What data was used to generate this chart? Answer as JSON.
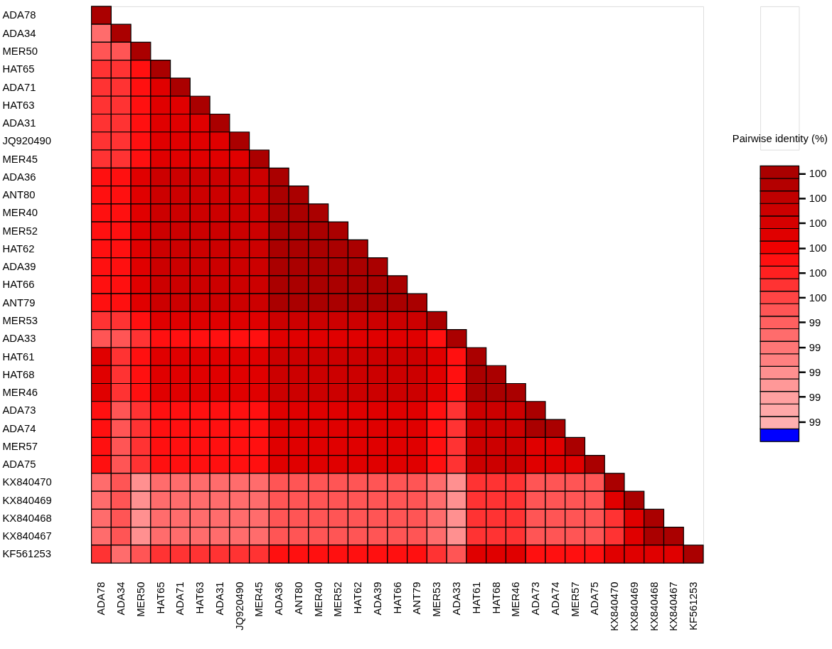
{
  "chart_data": {
    "type": "heatmap",
    "clabel": "Pairwise identity (%)",
    "categories": [
      "ADA78",
      "ADA34",
      "MER50",
      "HAT65",
      "ADA71",
      "HAT63",
      "ADA31",
      "JQ920490",
      "MER45",
      "ADA36",
      "ANT80",
      "MER40",
      "MER52",
      "HAT62",
      "ADA39",
      "HAT66",
      "ANT79",
      "MER53",
      "ADA33",
      "HAT61",
      "HAT68",
      "MER46",
      "ADA73",
      "ADA74",
      "MER57",
      "ADA75",
      "KX840470",
      "KX840469",
      "KX840468",
      "KX840467",
      "KF561253"
    ],
    "y_categories": [
      "ADA78",
      "ADA34",
      "MER50",
      "HAT65",
      "ADA71",
      "HAT63",
      "ADA31",
      "JQ920490",
      "MER45",
      "ADA36",
      "ANT80",
      "MER40",
      "MER52",
      "HAT62",
      "ADA39",
      "HAT66",
      "ANT79",
      "MER53",
      "ADA33",
      "HAT61",
      "HAT68",
      "MER46",
      "ADA73",
      "ADA74",
      "MER57",
      "ADA75",
      "KX840470",
      "KX840469",
      "KX840468",
      "KX840467",
      "KF561253"
    ],
    "cells": [
      [
        100,
        null,
        null,
        null,
        null,
        null,
        null,
        null,
        null,
        null,
        null,
        null,
        null,
        null,
        null,
        null,
        null,
        null,
        null,
        null,
        null,
        null,
        null,
        null,
        null,
        null,
        null,
        null,
        null,
        null,
        null
      ],
      [
        99.34,
        100,
        null,
        null,
        null,
        null,
        null,
        null,
        null,
        null,
        null,
        null,
        null,
        null,
        null,
        null,
        null,
        null,
        null,
        null,
        null,
        null,
        null,
        null,
        null,
        null,
        null,
        null,
        null,
        null,
        null
      ],
      [
        99.44,
        99.44,
        100,
        null,
        null,
        null,
        null,
        null,
        null,
        null,
        null,
        null,
        null,
        null,
        null,
        null,
        null,
        null,
        null,
        null,
        null,
        null,
        null,
        null,
        null,
        null,
        null,
        null,
        null,
        null,
        null
      ],
      [
        99.54,
        99.54,
        99.64,
        100,
        null,
        null,
        null,
        null,
        null,
        null,
        null,
        null,
        null,
        null,
        null,
        null,
        null,
        null,
        null,
        null,
        null,
        null,
        null,
        null,
        null,
        null,
        null,
        null,
        null,
        null,
        null
      ],
      [
        99.54,
        99.54,
        99.64,
        99.74,
        100,
        null,
        null,
        null,
        null,
        null,
        null,
        null,
        null,
        null,
        null,
        null,
        null,
        null,
        null,
        null,
        null,
        null,
        null,
        null,
        null,
        null,
        null,
        null,
        null,
        null,
        null
      ],
      [
        99.54,
        99.54,
        99.64,
        99.74,
        99.74,
        100,
        null,
        null,
        null,
        null,
        null,
        null,
        null,
        null,
        null,
        null,
        null,
        null,
        null,
        null,
        null,
        null,
        null,
        null,
        null,
        null,
        null,
        null,
        null,
        null,
        null
      ],
      [
        99.54,
        99.54,
        99.64,
        99.74,
        99.74,
        99.74,
        100,
        null,
        null,
        null,
        null,
        null,
        null,
        null,
        null,
        null,
        null,
        null,
        null,
        null,
        null,
        null,
        null,
        null,
        null,
        null,
        null,
        null,
        null,
        null,
        null
      ],
      [
        99.54,
        99.54,
        99.64,
        99.74,
        99.74,
        99.74,
        99.74,
        100,
        null,
        null,
        null,
        null,
        null,
        null,
        null,
        null,
        null,
        null,
        null,
        null,
        null,
        null,
        null,
        null,
        null,
        null,
        null,
        null,
        null,
        null,
        null
      ],
      [
        99.54,
        99.54,
        99.64,
        99.74,
        99.74,
        99.74,
        99.74,
        99.74,
        100,
        null,
        null,
        null,
        null,
        null,
        null,
        null,
        null,
        null,
        null,
        null,
        null,
        null,
        null,
        null,
        null,
        null,
        null,
        null,
        null,
        null,
        null
      ],
      [
        99.64,
        99.64,
        99.74,
        99.84,
        99.84,
        99.84,
        99.84,
        99.84,
        99.84,
        100,
        null,
        null,
        null,
        null,
        null,
        null,
        null,
        null,
        null,
        null,
        null,
        null,
        null,
        null,
        null,
        null,
        null,
        null,
        null,
        null,
        null
      ],
      [
        99.64,
        99.64,
        99.74,
        99.84,
        99.84,
        99.84,
        99.84,
        99.84,
        99.84,
        100,
        100,
        null,
        null,
        null,
        null,
        null,
        null,
        null,
        null,
        null,
        null,
        null,
        null,
        null,
        null,
        null,
        null,
        null,
        null,
        null,
        null
      ],
      [
        99.64,
        99.64,
        99.74,
        99.84,
        99.84,
        99.84,
        99.84,
        99.84,
        99.84,
        100,
        100,
        100,
        null,
        null,
        null,
        null,
        null,
        null,
        null,
        null,
        null,
        null,
        null,
        null,
        null,
        null,
        null,
        null,
        null,
        null,
        null
      ],
      [
        99.64,
        99.64,
        99.74,
        99.84,
        99.84,
        99.84,
        99.84,
        99.84,
        99.84,
        100,
        100,
        100,
        100,
        null,
        null,
        null,
        null,
        null,
        null,
        null,
        null,
        null,
        null,
        null,
        null,
        null,
        null,
        null,
        null,
        null,
        null
      ],
      [
        99.64,
        99.64,
        99.74,
        99.84,
        99.84,
        99.84,
        99.84,
        99.84,
        99.84,
        100,
        100,
        100,
        100,
        100,
        null,
        null,
        null,
        null,
        null,
        null,
        null,
        null,
        null,
        null,
        null,
        null,
        null,
        null,
        null,
        null,
        null
      ],
      [
        99.64,
        99.64,
        99.74,
        99.84,
        99.84,
        99.84,
        99.84,
        99.84,
        99.84,
        100,
        100,
        100,
        100,
        100,
        100,
        null,
        null,
        null,
        null,
        null,
        null,
        null,
        null,
        null,
        null,
        null,
        null,
        null,
        null,
        null,
        null
      ],
      [
        99.64,
        99.64,
        99.74,
        99.84,
        99.84,
        99.84,
        99.84,
        99.84,
        99.84,
        100,
        100,
        100,
        100,
        100,
        100,
        100,
        null,
        null,
        null,
        null,
        null,
        null,
        null,
        null,
        null,
        null,
        null,
        null,
        null,
        null,
        null
      ],
      [
        99.64,
        99.64,
        99.74,
        99.84,
        99.84,
        99.84,
        99.84,
        99.84,
        99.84,
        100,
        100,
        100,
        100,
        100,
        100,
        100,
        100,
        null,
        null,
        null,
        null,
        null,
        null,
        null,
        null,
        null,
        null,
        null,
        null,
        null,
        null
      ],
      [
        99.54,
        99.54,
        99.64,
        99.74,
        99.74,
        99.74,
        99.74,
        99.74,
        99.74,
        99.84,
        99.84,
        99.84,
        99.84,
        99.84,
        99.84,
        99.84,
        99.84,
        100,
        null,
        null,
        null,
        null,
        null,
        null,
        null,
        null,
        null,
        null,
        null,
        null,
        null
      ],
      [
        99.44,
        99.44,
        99.54,
        99.64,
        99.64,
        99.64,
        99.64,
        99.64,
        99.64,
        99.74,
        99.74,
        99.74,
        99.74,
        99.74,
        99.74,
        99.74,
        99.74,
        99.64,
        100,
        null,
        null,
        null,
        null,
        null,
        null,
        null,
        null,
        null,
        null,
        null,
        null
      ],
      [
        99.74,
        99.54,
        99.64,
        99.74,
        99.74,
        99.74,
        99.74,
        99.74,
        99.74,
        99.84,
        99.84,
        99.84,
        99.84,
        99.84,
        99.84,
        99.84,
        99.84,
        99.74,
        99.64,
        100,
        null,
        null,
        null,
        null,
        null,
        null,
        null,
        null,
        null,
        null,
        null
      ],
      [
        99.74,
        99.54,
        99.64,
        99.74,
        99.74,
        99.74,
        99.74,
        99.74,
        99.74,
        99.84,
        99.84,
        99.84,
        99.84,
        99.84,
        99.84,
        99.84,
        99.84,
        99.74,
        99.64,
        100,
        100,
        null,
        null,
        null,
        null,
        null,
        null,
        null,
        null,
        null,
        null
      ],
      [
        99.74,
        99.54,
        99.64,
        99.74,
        99.74,
        99.74,
        99.74,
        99.74,
        99.74,
        99.84,
        99.84,
        99.84,
        99.84,
        99.84,
        99.84,
        99.84,
        99.84,
        99.74,
        99.64,
        100,
        100,
        100,
        null,
        null,
        null,
        null,
        null,
        null,
        null,
        null,
        null
      ],
      [
        99.64,
        99.44,
        99.54,
        99.64,
        99.64,
        99.64,
        99.64,
        99.64,
        99.64,
        99.74,
        99.74,
        99.74,
        99.74,
        99.74,
        99.74,
        99.74,
        99.74,
        99.64,
        99.54,
        99.84,
        99.84,
        99.84,
        100,
        null,
        null,
        null,
        null,
        null,
        null,
        null,
        null
      ],
      [
        99.64,
        99.44,
        99.54,
        99.64,
        99.64,
        99.64,
        99.64,
        99.64,
        99.64,
        99.74,
        99.74,
        99.74,
        99.74,
        99.74,
        99.74,
        99.74,
        99.74,
        99.64,
        99.54,
        99.84,
        99.84,
        99.84,
        100,
        100,
        null,
        null,
        null,
        null,
        null,
        null,
        null
      ],
      [
        99.64,
        99.44,
        99.54,
        99.64,
        99.64,
        99.64,
        99.64,
        99.64,
        99.64,
        99.74,
        99.74,
        99.74,
        99.74,
        99.74,
        99.74,
        99.74,
        99.74,
        99.64,
        99.54,
        99.84,
        99.84,
        99.84,
        99.74,
        99.74,
        100,
        null,
        null,
        null,
        null,
        null,
        null
      ],
      [
        99.64,
        99.44,
        99.54,
        99.64,
        99.64,
        99.64,
        99.64,
        99.64,
        99.64,
        99.74,
        99.74,
        99.74,
        99.74,
        99.74,
        99.74,
        99.74,
        99.74,
        99.64,
        99.54,
        99.84,
        99.84,
        99.84,
        99.74,
        99.74,
        99.74,
        100,
        null,
        null,
        null,
        null,
        null
      ],
      [
        99.34,
        99.44,
        99.19,
        99.34,
        99.34,
        99.34,
        99.34,
        99.34,
        99.34,
        99.44,
        99.44,
        99.44,
        99.44,
        99.44,
        99.44,
        99.44,
        99.44,
        99.34,
        99.19,
        99.54,
        99.54,
        99.54,
        99.44,
        99.44,
        99.44,
        99.44,
        100,
        null,
        null,
        null,
        null
      ],
      [
        99.34,
        99.44,
        99.19,
        99.34,
        99.34,
        99.34,
        99.34,
        99.34,
        99.34,
        99.44,
        99.44,
        99.44,
        99.44,
        99.44,
        99.44,
        99.44,
        99.44,
        99.34,
        99.19,
        99.54,
        99.54,
        99.54,
        99.44,
        99.44,
        99.44,
        99.44,
        99.74,
        100,
        null,
        null,
        null
      ],
      [
        99.34,
        99.44,
        99.19,
        99.34,
        99.34,
        99.34,
        99.34,
        99.34,
        99.34,
        99.44,
        99.44,
        99.44,
        99.44,
        99.44,
        99.44,
        99.44,
        99.44,
        99.34,
        99.19,
        99.54,
        99.54,
        99.54,
        99.44,
        99.44,
        99.44,
        99.44,
        99.54,
        99.74,
        100,
        null,
        null
      ],
      [
        99.34,
        99.44,
        99.19,
        99.34,
        99.34,
        99.34,
        99.34,
        99.34,
        99.34,
        99.44,
        99.44,
        99.44,
        99.44,
        99.44,
        99.44,
        99.44,
        99.44,
        99.34,
        99.19,
        99.54,
        99.54,
        99.54,
        99.44,
        99.44,
        99.44,
        99.44,
        99.54,
        99.74,
        100,
        100,
        null
      ],
      [
        99.54,
        99.34,
        99.44,
        99.54,
        99.54,
        99.54,
        99.54,
        99.54,
        99.54,
        99.64,
        99.64,
        99.64,
        99.64,
        99.64,
        99.64,
        99.64,
        99.64,
        99.54,
        99.44,
        99.74,
        99.74,
        99.74,
        99.64,
        99.64,
        99.64,
        99.64,
        99.74,
        99.74,
        99.74,
        99.74,
        100
      ]
    ],
    "clim": [
      98.92,
      100.03
    ],
    "cticks": [
      {
        "value": 100.0,
        "label": "100"
      },
      {
        "value": 99.9,
        "label": "100"
      },
      {
        "value": 99.8,
        "label": "100"
      },
      {
        "value": 99.7,
        "label": "100"
      },
      {
        "value": 99.6,
        "label": "100"
      },
      {
        "value": 99.5,
        "label": "100"
      },
      {
        "value": 99.4,
        "label": "99"
      },
      {
        "value": 99.3,
        "label": "99"
      },
      {
        "value": 99.2,
        "label": "99"
      },
      {
        "value": 99.1,
        "label": "99"
      },
      {
        "value": 99.0,
        "label": "99"
      }
    ],
    "colors": [
      "#aa0000",
      "#b40000",
      "#c00000",
      "#cc0000",
      "#d60000",
      "#e00000",
      "#f00000",
      "#ff1010",
      "#ff2020",
      "#ff3333",
      "#ff4444",
      "#ff5555",
      "#ff6060",
      "#ff6c6c",
      "#ff7676",
      "#ff8080",
      "#ff9090",
      "#ff9898",
      "#ffa0a0",
      "#ffa8a8",
      "#ffb0b0",
      "#0000ff"
    ]
  }
}
